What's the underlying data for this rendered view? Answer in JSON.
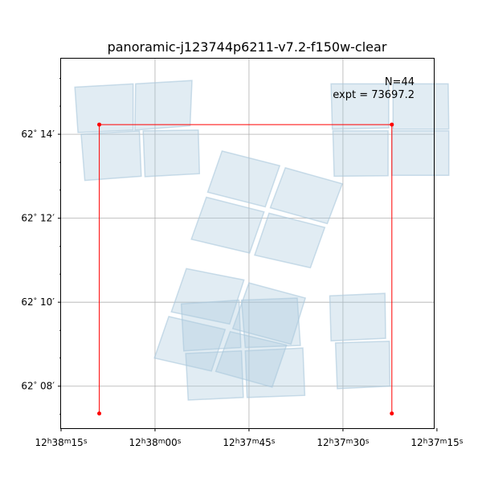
{
  "chart_data": {
    "type": "scatter",
    "title": "panoramic-j123744p6211-v7.2-f150w-clear",
    "annotation_lines": [
      "N=44",
      "expt = 73697.2"
    ],
    "grid": true,
    "x_axis": {
      "label": "",
      "direction": "decreasing to the right",
      "range_sec": [
        915,
        855.5
      ],
      "ticks": [
        {
          "value": 915,
          "h": "12",
          "m": "38",
          "s": "15"
        },
        {
          "value": 900,
          "h": "12",
          "m": "38",
          "s": "00"
        },
        {
          "value": 885,
          "h": "12",
          "m": "37",
          "s": "45"
        },
        {
          "value": 870,
          "h": "12",
          "m": "37",
          "s": "30"
        },
        {
          "value": 855,
          "h": "12",
          "m": "37",
          "s": "15"
        }
      ]
    },
    "y_axis": {
      "label": "",
      "range_arcmin": [
        7.0,
        15.8
      ],
      "ticks": [
        {
          "value": 8,
          "deg": "62",
          "min": "08"
        },
        {
          "value": 10,
          "deg": "62",
          "min": "10"
        },
        {
          "value": 12,
          "deg": "62",
          "min": "12"
        },
        {
          "value": 14,
          "deg": "62",
          "min": "14"
        }
      ],
      "minor_ticks": [
        7.33,
        8.67,
        9.33,
        10.67,
        11.33,
        12.67,
        13.33,
        14.67,
        15.33
      ]
    },
    "outline": {
      "color": "#ff0000",
      "points": [
        [
          908.9,
          7.35
        ],
        [
          908.9,
          14.23
        ],
        [
          862.2,
          14.23
        ],
        [
          862.2,
          7.35
        ]
      ]
    },
    "footprint_color": "#aac8dc",
    "footprints": [
      {
        "group": "top-left",
        "corners": [
          [
            912.8,
            15.12
          ],
          [
            903.5,
            15.2
          ],
          [
            903.5,
            14.1
          ],
          [
            912.3,
            14.04
          ]
        ]
      },
      {
        "group": "top-left",
        "corners": [
          [
            903.1,
            15.2
          ],
          [
            894.1,
            15.28
          ],
          [
            894.4,
            14.2
          ],
          [
            903.2,
            14.1
          ]
        ]
      },
      {
        "group": "top-left",
        "corners": [
          [
            911.8,
            14.0
          ],
          [
            902.5,
            14.08
          ],
          [
            902.2,
            13.0
          ],
          [
            911.2,
            12.9
          ]
        ]
      },
      {
        "group": "top-left",
        "corners": [
          [
            901.9,
            14.08
          ],
          [
            893.1,
            14.1
          ],
          [
            892.9,
            13.06
          ],
          [
            901.6,
            12.99
          ]
        ]
      },
      {
        "group": "top-right",
        "corners": [
          [
            871.9,
            15.2
          ],
          [
            862.7,
            15.2
          ],
          [
            862.7,
            14.15
          ],
          [
            871.7,
            14.12
          ]
        ]
      },
      {
        "group": "top-right",
        "corners": [
          [
            862.0,
            15.2
          ],
          [
            853.2,
            15.2
          ],
          [
            853.1,
            14.12
          ],
          [
            862.0,
            14.12
          ]
        ]
      },
      {
        "group": "top-right",
        "corners": [
          [
            871.6,
            14.08
          ],
          [
            862.8,
            14.08
          ],
          [
            862.8,
            13.01
          ],
          [
            871.4,
            13.0
          ]
        ]
      },
      {
        "group": "top-right",
        "corners": [
          [
            862.2,
            14.08
          ],
          [
            853.1,
            14.08
          ],
          [
            853.1,
            13.02
          ],
          [
            862.2,
            13.02
          ]
        ]
      },
      {
        "group": "center",
        "corners": [
          [
            889.3,
            13.6
          ],
          [
            880.1,
            13.25
          ],
          [
            882.4,
            12.27
          ],
          [
            891.6,
            12.62
          ]
        ]
      },
      {
        "group": "center",
        "corners": [
          [
            879.2,
            13.2
          ],
          [
            870.1,
            12.82
          ],
          [
            872.5,
            11.87
          ],
          [
            881.6,
            12.25
          ]
        ]
      },
      {
        "group": "center",
        "corners": [
          [
            891.8,
            12.5
          ],
          [
            882.6,
            12.15
          ],
          [
            884.9,
            11.17
          ],
          [
            894.2,
            11.5
          ]
        ]
      },
      {
        "group": "center",
        "corners": [
          [
            881.8,
            12.12
          ],
          [
            872.9,
            11.78
          ],
          [
            875.2,
            10.82
          ],
          [
            884.1,
            11.12
          ]
        ]
      },
      {
        "group": "bottom-left",
        "corners": [
          [
            895.0,
            10.8
          ],
          [
            885.8,
            10.53
          ],
          [
            888.1,
            9.48
          ],
          [
            897.4,
            9.77
          ]
        ]
      },
      {
        "group": "bottom-left",
        "corners": [
          [
            885.0,
            10.46
          ],
          [
            876.0,
            10.1
          ],
          [
            878.3,
            9.0
          ],
          [
            887.6,
            9.37
          ]
        ]
      },
      {
        "group": "bottom-left",
        "corners": [
          [
            897.8,
            9.66
          ],
          [
            888.8,
            9.35
          ],
          [
            891.0,
            8.36
          ],
          [
            900.1,
            8.67
          ]
        ]
      },
      {
        "group": "bottom-left",
        "corners": [
          [
            888.0,
            9.3
          ],
          [
            879.0,
            8.98
          ],
          [
            881.3,
            7.98
          ],
          [
            890.3,
            8.35
          ]
        ]
      },
      {
        "group": "bottom-mid",
        "corners": [
          [
            895.8,
            9.96
          ],
          [
            886.6,
            10.05
          ],
          [
            886.3,
            8.92
          ],
          [
            895.4,
            8.84
          ]
        ]
      },
      {
        "group": "bottom-mid",
        "corners": [
          [
            886.2,
            10.05
          ],
          [
            877.3,
            10.1
          ],
          [
            876.8,
            8.97
          ],
          [
            885.6,
            8.92
          ]
        ]
      },
      {
        "group": "bottom-mid",
        "corners": [
          [
            895.1,
            8.78
          ],
          [
            886.2,
            8.84
          ],
          [
            885.9,
            7.73
          ],
          [
            894.7,
            7.67
          ]
        ]
      },
      {
        "group": "bottom-mid",
        "corners": [
          [
            885.6,
            8.84
          ],
          [
            876.4,
            8.91
          ],
          [
            876.1,
            7.78
          ],
          [
            885.3,
            7.73
          ]
        ]
      },
      {
        "group": "bottom-right",
        "corners": [
          [
            872.1,
            10.15
          ],
          [
            863.3,
            10.21
          ],
          [
            863.2,
            9.14
          ],
          [
            871.9,
            9.08
          ]
        ]
      },
      {
        "group": "bottom-right",
        "corners": [
          [
            871.2,
            9.03
          ],
          [
            862.6,
            9.07
          ],
          [
            862.5,
            8.0
          ],
          [
            870.9,
            7.94
          ]
        ]
      }
    ]
  }
}
